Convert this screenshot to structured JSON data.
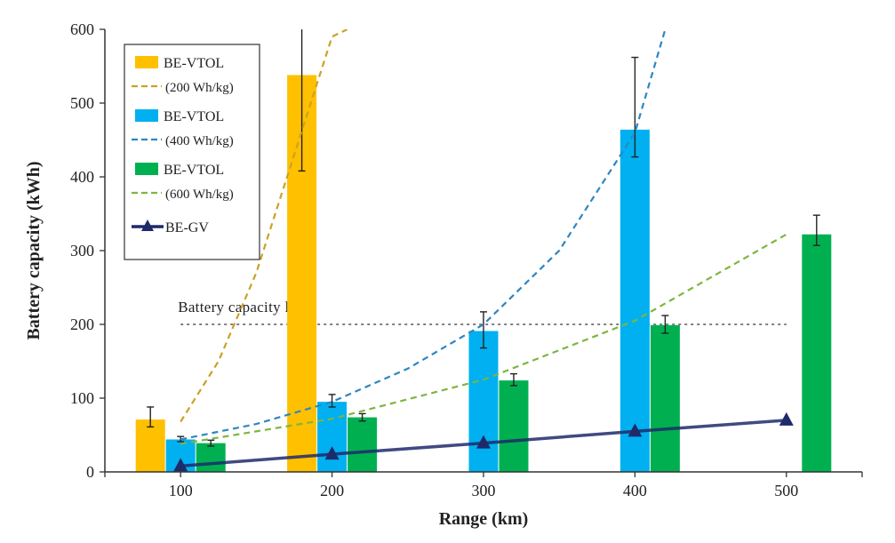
{
  "chart_data": {
    "type": "bar",
    "xlabel": "Range (km)",
    "ylabel": "Battery capacity (kWh)",
    "ylim": [
      0,
      600
    ],
    "yticks": [
      0,
      100,
      200,
      300,
      400,
      500,
      600
    ],
    "categories": [
      "100",
      "200",
      "300",
      "400",
      "500"
    ],
    "grid": false,
    "legend_placement": "top-left",
    "colors": {
      "vtol200": "#FFC000",
      "vtol400": "#00B0F0",
      "vtol600": "#00B050",
      "gv": "#1F2A6B",
      "curve200": "#C9A227",
      "curve400": "#2E86C1",
      "curve600": "#7DB63F",
      "limit": "#7F7F7F"
    },
    "bar_series": [
      {
        "key": "vtol200",
        "values": [
          71,
          538,
          null,
          null,
          null
        ],
        "err_low": [
          61,
          408,
          null,
          null,
          null
        ],
        "err_high": [
          88,
          600,
          null,
          null,
          null
        ]
      },
      {
        "key": "vtol400",
        "values": [
          44,
          95,
          191,
          464,
          null
        ],
        "err_low": [
          41,
          88,
          168,
          427,
          null
        ],
        "err_high": [
          48,
          105,
          217,
          562,
          null
        ]
      },
      {
        "key": "vtol600",
        "values": [
          39,
          74,
          124,
          199,
          322
        ],
        "err_low": [
          35,
          69,
          117,
          188,
          307
        ],
        "err_high": [
          43,
          79,
          133,
          212,
          348
        ]
      }
    ],
    "line_series": [
      {
        "key": "gv",
        "x": [
          100,
          200,
          300,
          400,
          500
        ],
        "values": [
          8,
          24,
          39,
          55,
          70
        ]
      }
    ],
    "curves": [
      {
        "key": "curve200",
        "x": [
          100,
          125,
          150,
          175,
          200,
          210
        ],
        "values": [
          68,
          150,
          270,
          430,
          590,
          600
        ]
      },
      {
        "key": "curve400",
        "x": [
          100,
          150,
          200,
          250,
          300,
          350,
          400,
          420
        ],
        "values": [
          44,
          65,
          95,
          140,
          200,
          300,
          460,
          600
        ]
      },
      {
        "key": "curve600",
        "x": [
          100,
          200,
          300,
          400,
          500
        ],
        "values": [
          38,
          72,
          125,
          205,
          322
        ]
      }
    ],
    "legend": [
      {
        "label": "BE-VTOL",
        "sublabel": "(200 Wh/kg)",
        "bar": "vtol200",
        "dash": "curve200"
      },
      {
        "label": "BE-VTOL",
        "sublabel": "(400 Wh/kg)",
        "bar": "vtol400",
        "dash": "curve400"
      },
      {
        "label": "BE-VTOL",
        "sublabel": "(600 Wh/kg)",
        "bar": "vtol600",
        "dash": "curve600"
      },
      {
        "label": "BE-GV",
        "line": "gv"
      }
    ],
    "reference_line": {
      "label": "Battery capacity limit",
      "value": 200,
      "x_from": 100,
      "x_to": 500
    }
  }
}
